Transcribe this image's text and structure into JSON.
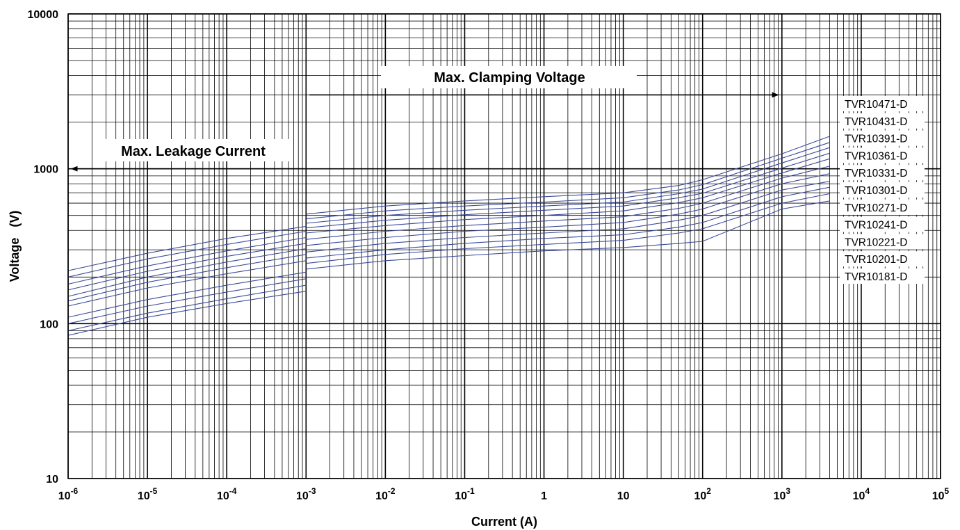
{
  "chart_data": {
    "type": "line",
    "xscale": "log",
    "yscale": "log",
    "xlabel": "Current (A)",
    "ylabel": "Voltage   (V)",
    "xlim": [
      1e-06,
      100000.0
    ],
    "ylim": [
      10,
      10000
    ],
    "grid": true,
    "x_ticks": [
      {
        "value": 1e-06,
        "base": "10",
        "exp": "-6"
      },
      {
        "value": 1e-05,
        "base": "10",
        "exp": "-5"
      },
      {
        "value": 0.0001,
        "base": "10",
        "exp": "-4"
      },
      {
        "value": 0.001,
        "base": "10",
        "exp": "-3"
      },
      {
        "value": 0.01,
        "base": "10",
        "exp": "-2"
      },
      {
        "value": 0.1,
        "base": "10",
        "exp": "-1"
      },
      {
        "value": 1,
        "base": "1",
        "exp": ""
      },
      {
        "value": 10,
        "base": "10",
        "exp": ""
      },
      {
        "value": 100,
        "base": "10",
        "exp": "2"
      },
      {
        "value": 1000,
        "base": "10",
        "exp": "3"
      },
      {
        "value": 10000,
        "base": "10",
        "exp": "4"
      },
      {
        "value": 100000,
        "base": "10",
        "exp": "5"
      }
    ],
    "y_ticks": [
      {
        "value": 10,
        "label": "10"
      },
      {
        "value": 100,
        "label": "100"
      },
      {
        "value": 1000,
        "label": "1000"
      },
      {
        "value": 10000,
        "label": "10000"
      }
    ],
    "annotations": {
      "clamping": {
        "text": "Max.  Clamping  Voltage",
        "arrow_from": 0.001,
        "arrow_to": 900,
        "arrow_at": 3000
      },
      "leakage": {
        "text": "Max. Leakage Current",
        "arrow_from": 0.001,
        "arrow_to": 1.1e-06,
        "arrow_at": 1000
      }
    },
    "line_color": "#3a4a9a",
    "legend_position": "right",
    "leakage_x": [
      1e-06,
      1e-05,
      0.0001,
      0.001
    ],
    "clamp_x": [
      0.001,
      0.01,
      0.1,
      1,
      10,
      50,
      100,
      1000,
      4000
    ],
    "series": [
      {
        "name": "TVR10471-D",
        "leakage": [
          220,
          285,
          355,
          425
        ],
        "clamp": [
          510,
          575,
          620,
          660,
          700,
          780,
          850,
          1250,
          1620
        ]
      },
      {
        "name": "TVR10431-D",
        "leakage": [
          200,
          262,
          325,
          395
        ],
        "clamp": [
          475,
          535,
          575,
          610,
          650,
          730,
          790,
          1170,
          1480
        ]
      },
      {
        "name": "TVR10391-D",
        "leakage": [
          180,
          236,
          295,
          360
        ],
        "clamp": [
          445,
          500,
          540,
          575,
          610,
          690,
          740,
          1090,
          1370
        ]
      },
      {
        "name": "TVR10361-D",
        "leakage": [
          165,
          218,
          272,
          330
        ],
        "clamp": [
          415,
          465,
          505,
          540,
          575,
          650,
          695,
          1010,
          1260
        ]
      },
      {
        "name": "TVR10331-D",
        "leakage": [
          150,
          200,
          250,
          305
        ],
        "clamp": [
          385,
          430,
          470,
          500,
          535,
          605,
          650,
          940,
          1160
        ]
      },
      {
        "name": "TVR10301-D",
        "leakage": [
          140,
          185,
          230,
          280
        ],
        "clamp": [
          350,
          395,
          430,
          460,
          490,
          555,
          600,
          870,
          1040
        ]
      },
      {
        "name": "TVR10271-D",
        "leakage": [
          130,
          170,
          210,
          255
        ],
        "clamp": [
          320,
          360,
          395,
          420,
          450,
          510,
          550,
          800,
          930
        ]
      },
      {
        "name": "TVR10241-D",
        "leakage": [
          110,
          143,
          177,
          215
        ],
        "clamp": [
          290,
          330,
          360,
          385,
          410,
          465,
          500,
          730,
          830
        ]
      },
      {
        "name": "TVR10221-D",
        "leakage": [
          100,
          130,
          160,
          195
        ],
        "clamp": [
          265,
          300,
          330,
          355,
          375,
          420,
          450,
          660,
          760
        ]
      },
      {
        "name": "TVR10201-D",
        "leakage": [
          90,
          117,
          145,
          177
        ],
        "clamp": [
          245,
          280,
          305,
          325,
          345,
          385,
          410,
          600,
          690
        ]
      },
      {
        "name": "TVR10181-D",
        "leakage": [
          84,
          110,
          135,
          162
        ],
        "clamp": [
          225,
          255,
          275,
          295,
          310,
          330,
          340,
          550,
          620
        ]
      }
    ]
  }
}
